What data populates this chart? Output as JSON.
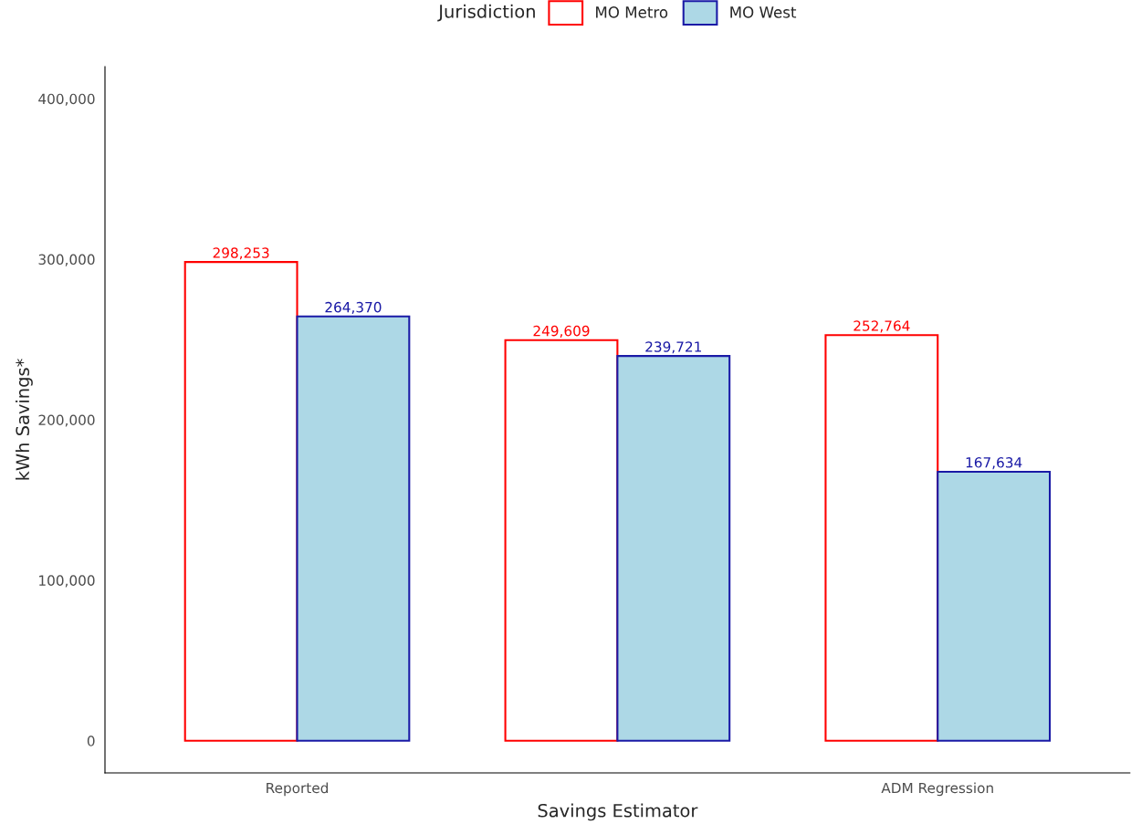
{
  "chart_data": {
    "type": "bar",
    "xlabel": "Savings Estimator",
    "ylabel": "kWh Savings*",
    "legend_title": "Jurisdiction",
    "categories": [
      "Reported",
      null,
      "ADM Regression"
    ],
    "series": [
      {
        "name": "MO Metro",
        "color": "#ffffff",
        "values": [
          298253,
          249609,
          252764
        ],
        "value_labels": [
          "298,253",
          "249,609",
          "252,764"
        ]
      },
      {
        "name": "MO West",
        "color": "#add8e6",
        "values": [
          264370,
          239721,
          167634
        ],
        "value_labels": [
          "264,370",
          "239,721",
          "167,634"
        ]
      }
    ],
    "ylim": [
      -20000,
      420000
    ],
    "yticks": [
      0,
      {
        "value": 100000,
        "label": "100,000"
      },
      {
        "value": 200000,
        "label": "200,000"
      },
      {
        "value": 300000,
        "label": "300,000"
      },
      {
        "value": 400000,
        "label": "400,000"
      }
    ],
    "grid": false,
    "legend": "top"
  }
}
